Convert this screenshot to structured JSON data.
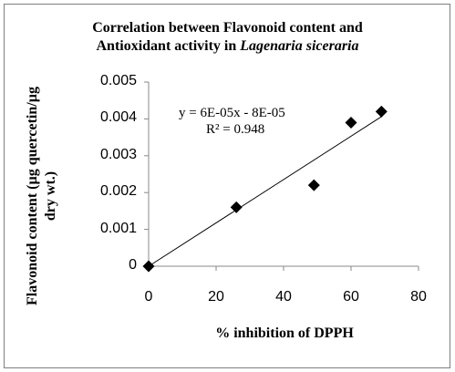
{
  "chart_data": {
    "type": "scatter",
    "title_line1": "Correlation between Flavonoid content and",
    "title_line2_prefix": "Antioxidant activity in ",
    "title_line2_italic": "Lagenaria siceraria",
    "xlabel": "% inhibition of DPPH",
    "ylabel_line1": "Flavonoid content (µg quercetin/µg",
    "ylabel_line2": "dry wt.)",
    "xlim": [
      0,
      80
    ],
    "ylim": [
      0,
      0.005
    ],
    "x_ticks": [
      "0",
      "20",
      "40",
      "60",
      "80"
    ],
    "y_ticks": [
      "0",
      "0.001",
      "0.002",
      "0.003",
      "0.004",
      "0.005"
    ],
    "points": [
      {
        "x": 0,
        "y": 0
      },
      {
        "x": 26,
        "y": 0.0016
      },
      {
        "x": 49,
        "y": 0.0022
      },
      {
        "x": 60,
        "y": 0.0039
      },
      {
        "x": 69,
        "y": 0.0042
      }
    ],
    "trendline": {
      "slope": 6e-05,
      "intercept": -8e-05
    },
    "equation": "y = 6E-05x - 8E-05",
    "r_squared": "R² = 0.948",
    "grid": false,
    "marker": "diamond",
    "marker_color": "#000000"
  }
}
